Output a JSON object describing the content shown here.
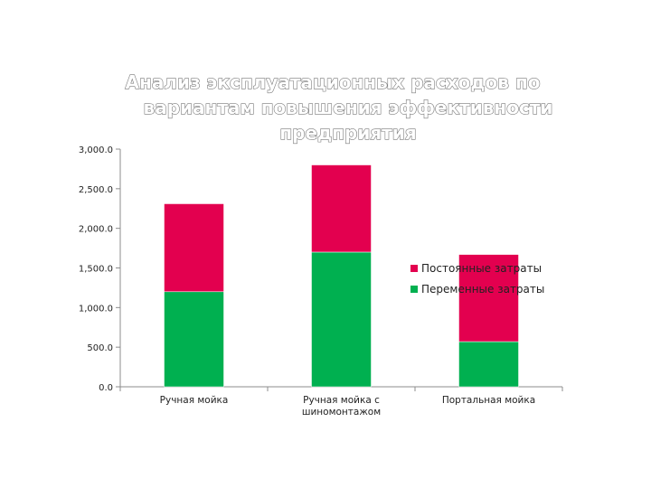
{
  "chart_data": {
    "type": "bar",
    "stacked": true,
    "title_lines": [
      "Анализ эксплуатационных расходов по",
      "вариантам повышения эффективности",
      "предприятия"
    ],
    "categories": [
      [
        "Ручная мойка"
      ],
      [
        "Ручная мойка с",
        "шиномонтажом"
      ],
      [
        "Портальная мойка"
      ]
    ],
    "series": [
      {
        "name": "Переменные затраты",
        "color": "#00b050",
        "values": [
          1200,
          1700,
          570
        ]
      },
      {
        "name": "Постоянные затраты",
        "color": "#e3004f",
        "values": [
          1110,
          1100,
          1100
        ]
      }
    ],
    "ylim": [
      0,
      3000
    ],
    "yticks": [
      0,
      500,
      1000,
      1500,
      2000,
      2500,
      3000
    ],
    "ytick_labels": [
      "0.0",
      "500.0",
      "1,000.0",
      "1,500.0",
      "2,000.0",
      "2,500.0",
      "3,000.0"
    ],
    "legend_order": [
      "Постоянные затраты",
      "Переменные затраты"
    ],
    "legend_position": "right",
    "grid": false
  }
}
